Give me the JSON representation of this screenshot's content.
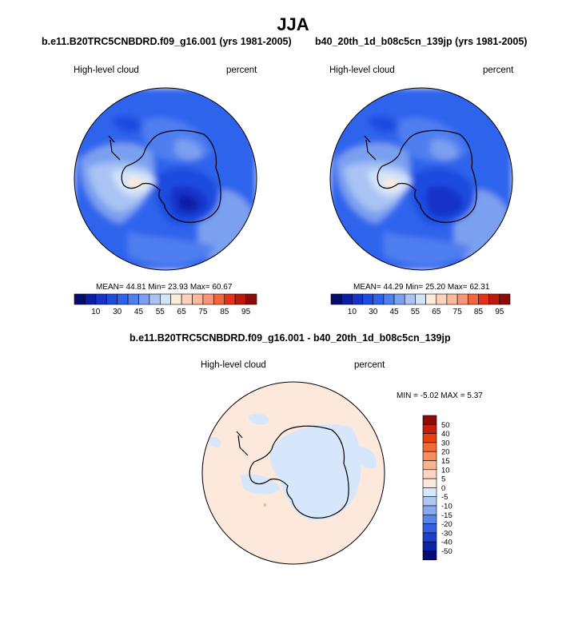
{
  "page": {
    "title": "JJA",
    "diff_title": "b.e11.B20TRC5CNBDRD.f09_g16.001 - b40_20th_1d_b08c5cn_139jp"
  },
  "chart_data": [
    {
      "type": "heatmap",
      "projection": "south-polar-stereographic",
      "title": "b.e11.B20TRC5CNBDRD.f09_g16.001 (yrs 1981-2005)",
      "left_label": "High-level cloud",
      "right_label": "percent",
      "stats_text": "MEAN=  44.81  Min=  23.93  Max=  60.67",
      "stats": {
        "mean": 44.81,
        "min": 23.93,
        "max": 60.67
      },
      "colorbar": {
        "orientation": "horizontal",
        "levels": [
          5,
          10,
          20,
          30,
          40,
          45,
          50,
          55,
          60,
          65,
          70,
          75,
          80,
          85,
          90,
          95
        ],
        "tick_labels": [
          "10",
          "30",
          "45",
          "55",
          "65",
          "75",
          "85",
          "95"
        ],
        "colors": [
          "#050d6e",
          "#0a1fa5",
          "#1533c8",
          "#1e4be0",
          "#2d63ec",
          "#4f7ef0",
          "#7ca0f0",
          "#a9c3f3",
          "#d2e4fa",
          "#fcebd8",
          "#fcd2bd",
          "#fab89d",
          "#f89578",
          "#f2663f",
          "#e23318",
          "#bd1a0c",
          "#8b0b07"
        ]
      },
      "field_summary": {
        "ocean_ring": [
          44,
          40
        ],
        "east_antarctic_plateau": [
          25,
          45
        ],
        "west_antarctica_maximum": [
          60,
          62
        ],
        "ross_region": [
          30,
          45
        ]
      }
    },
    {
      "type": "heatmap",
      "projection": "south-polar-stereographic",
      "title": "b40_20th_1d_b08c5cn_139jp (yrs 1981-2005)",
      "left_label": "High-level cloud",
      "right_label": "percent",
      "stats_text": "MEAN=  44.29  Min=  25.20  Max=  62.31",
      "stats": {
        "mean": 44.29,
        "min": 25.2,
        "max": 62.31
      },
      "colorbar": {
        "orientation": "horizontal",
        "levels": [
          5,
          10,
          20,
          30,
          40,
          45,
          50,
          55,
          60,
          65,
          70,
          75,
          80,
          85,
          90,
          95
        ],
        "tick_labels": [
          "10",
          "30",
          "45",
          "55",
          "65",
          "75",
          "85",
          "95"
        ],
        "colors": [
          "#050d6e",
          "#0a1fa5",
          "#1533c8",
          "#1e4be0",
          "#2d63ec",
          "#4f7ef0",
          "#7ca0f0",
          "#a9c3f3",
          "#d2e4fa",
          "#fcebd8",
          "#fcd2bd",
          "#fab89d",
          "#f89578",
          "#f2663f",
          "#e23318",
          "#bd1a0c",
          "#8b0b07"
        ]
      }
    },
    {
      "type": "heatmap",
      "projection": "south-polar-stereographic",
      "title": "b.e11.B20TRC5CNBDRD.f09_g16.001 - b40_20th_1d_b08c5cn_139jp",
      "left_label": "High-level cloud",
      "right_label": "percent",
      "stats_text": "MIN = -5.02 MAX =   5.37",
      "stats": {
        "min": -5.02,
        "max": 5.37
      },
      "colorbar": {
        "orientation": "vertical",
        "levels": [
          50,
          40,
          30,
          20,
          15,
          10,
          5,
          0,
          -5,
          -10,
          -15,
          -20,
          -30,
          -40,
          -50
        ],
        "tick_labels": [
          "50",
          "40",
          "30",
          "20",
          "15",
          "10",
          "5",
          "0",
          "-5",
          "-10",
          "-15",
          "-20",
          "-30",
          "-40",
          "-50"
        ],
        "colors": [
          "#8b0b07",
          "#c81e0e",
          "#e8400f",
          "#f26a35",
          "#f78e60",
          "#fab391",
          "#fcd4c2",
          "#fde9dc",
          "#d6e7fb",
          "#aec8f4",
          "#86a9ef",
          "#5b85ea",
          "#3461e4",
          "#1c3fcf",
          "#0d23a6",
          "#050c73"
        ]
      }
    }
  ]
}
